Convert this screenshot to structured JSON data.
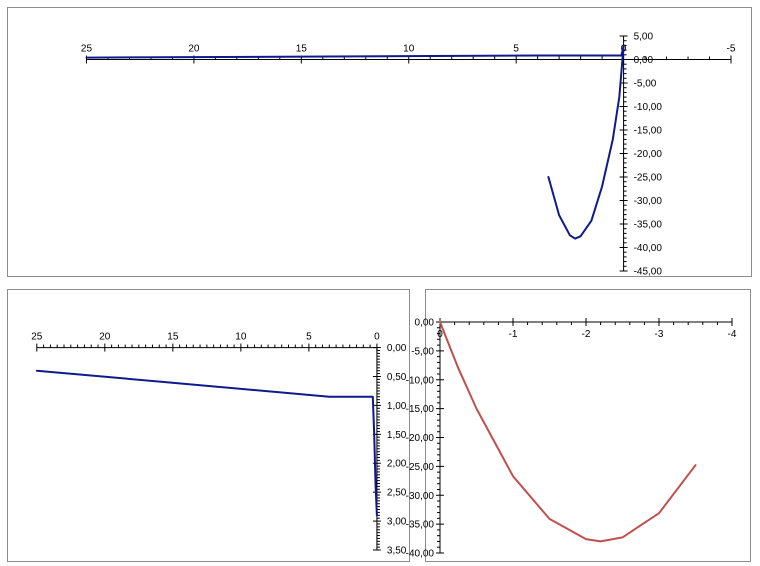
{
  "colors": {
    "navy": "#0f1a8c",
    "red": "#c0504d"
  },
  "chart_data": [
    {
      "type": "line",
      "name": "top-chart",
      "xlim": [
        26,
        -5
      ],
      "ylim": [
        5,
        -45
      ],
      "x_axis_at_y": 0,
      "y_axis_at_x": 0,
      "x_ticks": [
        25,
        20,
        15,
        10,
        5,
        0,
        -5
      ],
      "x_tick_labels": [
        "25",
        "20",
        "15",
        "10",
        "5",
        "0",
        "-5"
      ],
      "y_ticks": [
        -45,
        -40,
        -35,
        -30,
        -25,
        -20,
        -15,
        -10,
        -5,
        0,
        5
      ],
      "y_tick_labels": [
        "-45,00",
        "-40,00",
        "-35,00",
        "-30,00",
        "-25,00",
        "-20,00",
        "-15,00",
        "-10,00",
        "-5,00",
        "0,00",
        "5,00"
      ],
      "series": [
        {
          "color": "#0f1a8c",
          "x": [
            25,
            4,
            0.1,
            0,
            0.2,
            0.5,
            1.0,
            1.5,
            2.0,
            2.25,
            2.5,
            3.0,
            3.5
          ],
          "y": [
            0.4,
            0.85,
            0.85,
            2.9,
            -8,
            -17,
            -27,
            -34.3,
            -37.6,
            -38.1,
            -37.4,
            -33.1,
            -25
          ]
        }
      ]
    },
    {
      "type": "line",
      "name": "bottom-left-chart",
      "xlim": [
        25.5,
        -0.3
      ],
      "ylim": [
        -0.2,
        3.5
      ],
      "x_axis_at_y": 0,
      "y_axis_at_x": 0,
      "x_ticks": [
        25,
        20,
        15,
        10,
        5,
        0
      ],
      "x_tick_labels": [
        "25",
        "20",
        "15",
        "10",
        "5",
        "0"
      ],
      "y_ticks": [
        0,
        0.5,
        1,
        1.5,
        2,
        2.5,
        3,
        3.5
      ],
      "y_tick_labels": [
        "0,00",
        "0,50",
        "1,00",
        "1,50",
        "2,00",
        "2,50",
        "3,00",
        "3,50"
      ],
      "series": [
        {
          "color": "#0f1a8c",
          "x": [
            25,
            3.5,
            0.3,
            0.2,
            0.1,
            0
          ],
          "y": [
            0.4,
            0.85,
            0.85,
            1.5,
            2.4,
            2.9
          ]
        }
      ]
    },
    {
      "type": "line",
      "name": "bottom-right-chart",
      "xlim": [
        0,
        -4
      ],
      "ylim": [
        0,
        -40
      ],
      "x_axis_at_y": 0,
      "y_axis_at_x": 0,
      "x_ticks": [
        0,
        -1,
        -2,
        -3,
        -4
      ],
      "x_tick_labels": [
        "0",
        "-1",
        "-2",
        "-3",
        "-4"
      ],
      "y_ticks": [
        -40,
        -35,
        -30,
        -25,
        -20,
        -15,
        -10,
        -5,
        0
      ],
      "y_tick_labels": [
        "-40,00",
        "-35,00",
        "-30,00",
        "-25,00",
        "-20,00",
        "-15,00",
        "-10,00",
        "-5,00",
        "0,00"
      ],
      "series": [
        {
          "color": "#c0504d",
          "x": [
            0,
            -0.25,
            -0.5,
            -1.0,
            -1.5,
            -2.0,
            -2.2,
            -2.5,
            -3.0,
            -3.5
          ],
          "y": [
            0,
            -8,
            -15,
            -26.7,
            -34.1,
            -37.6,
            -38.0,
            -37.3,
            -33.1,
            -24.8
          ]
        }
      ]
    }
  ]
}
